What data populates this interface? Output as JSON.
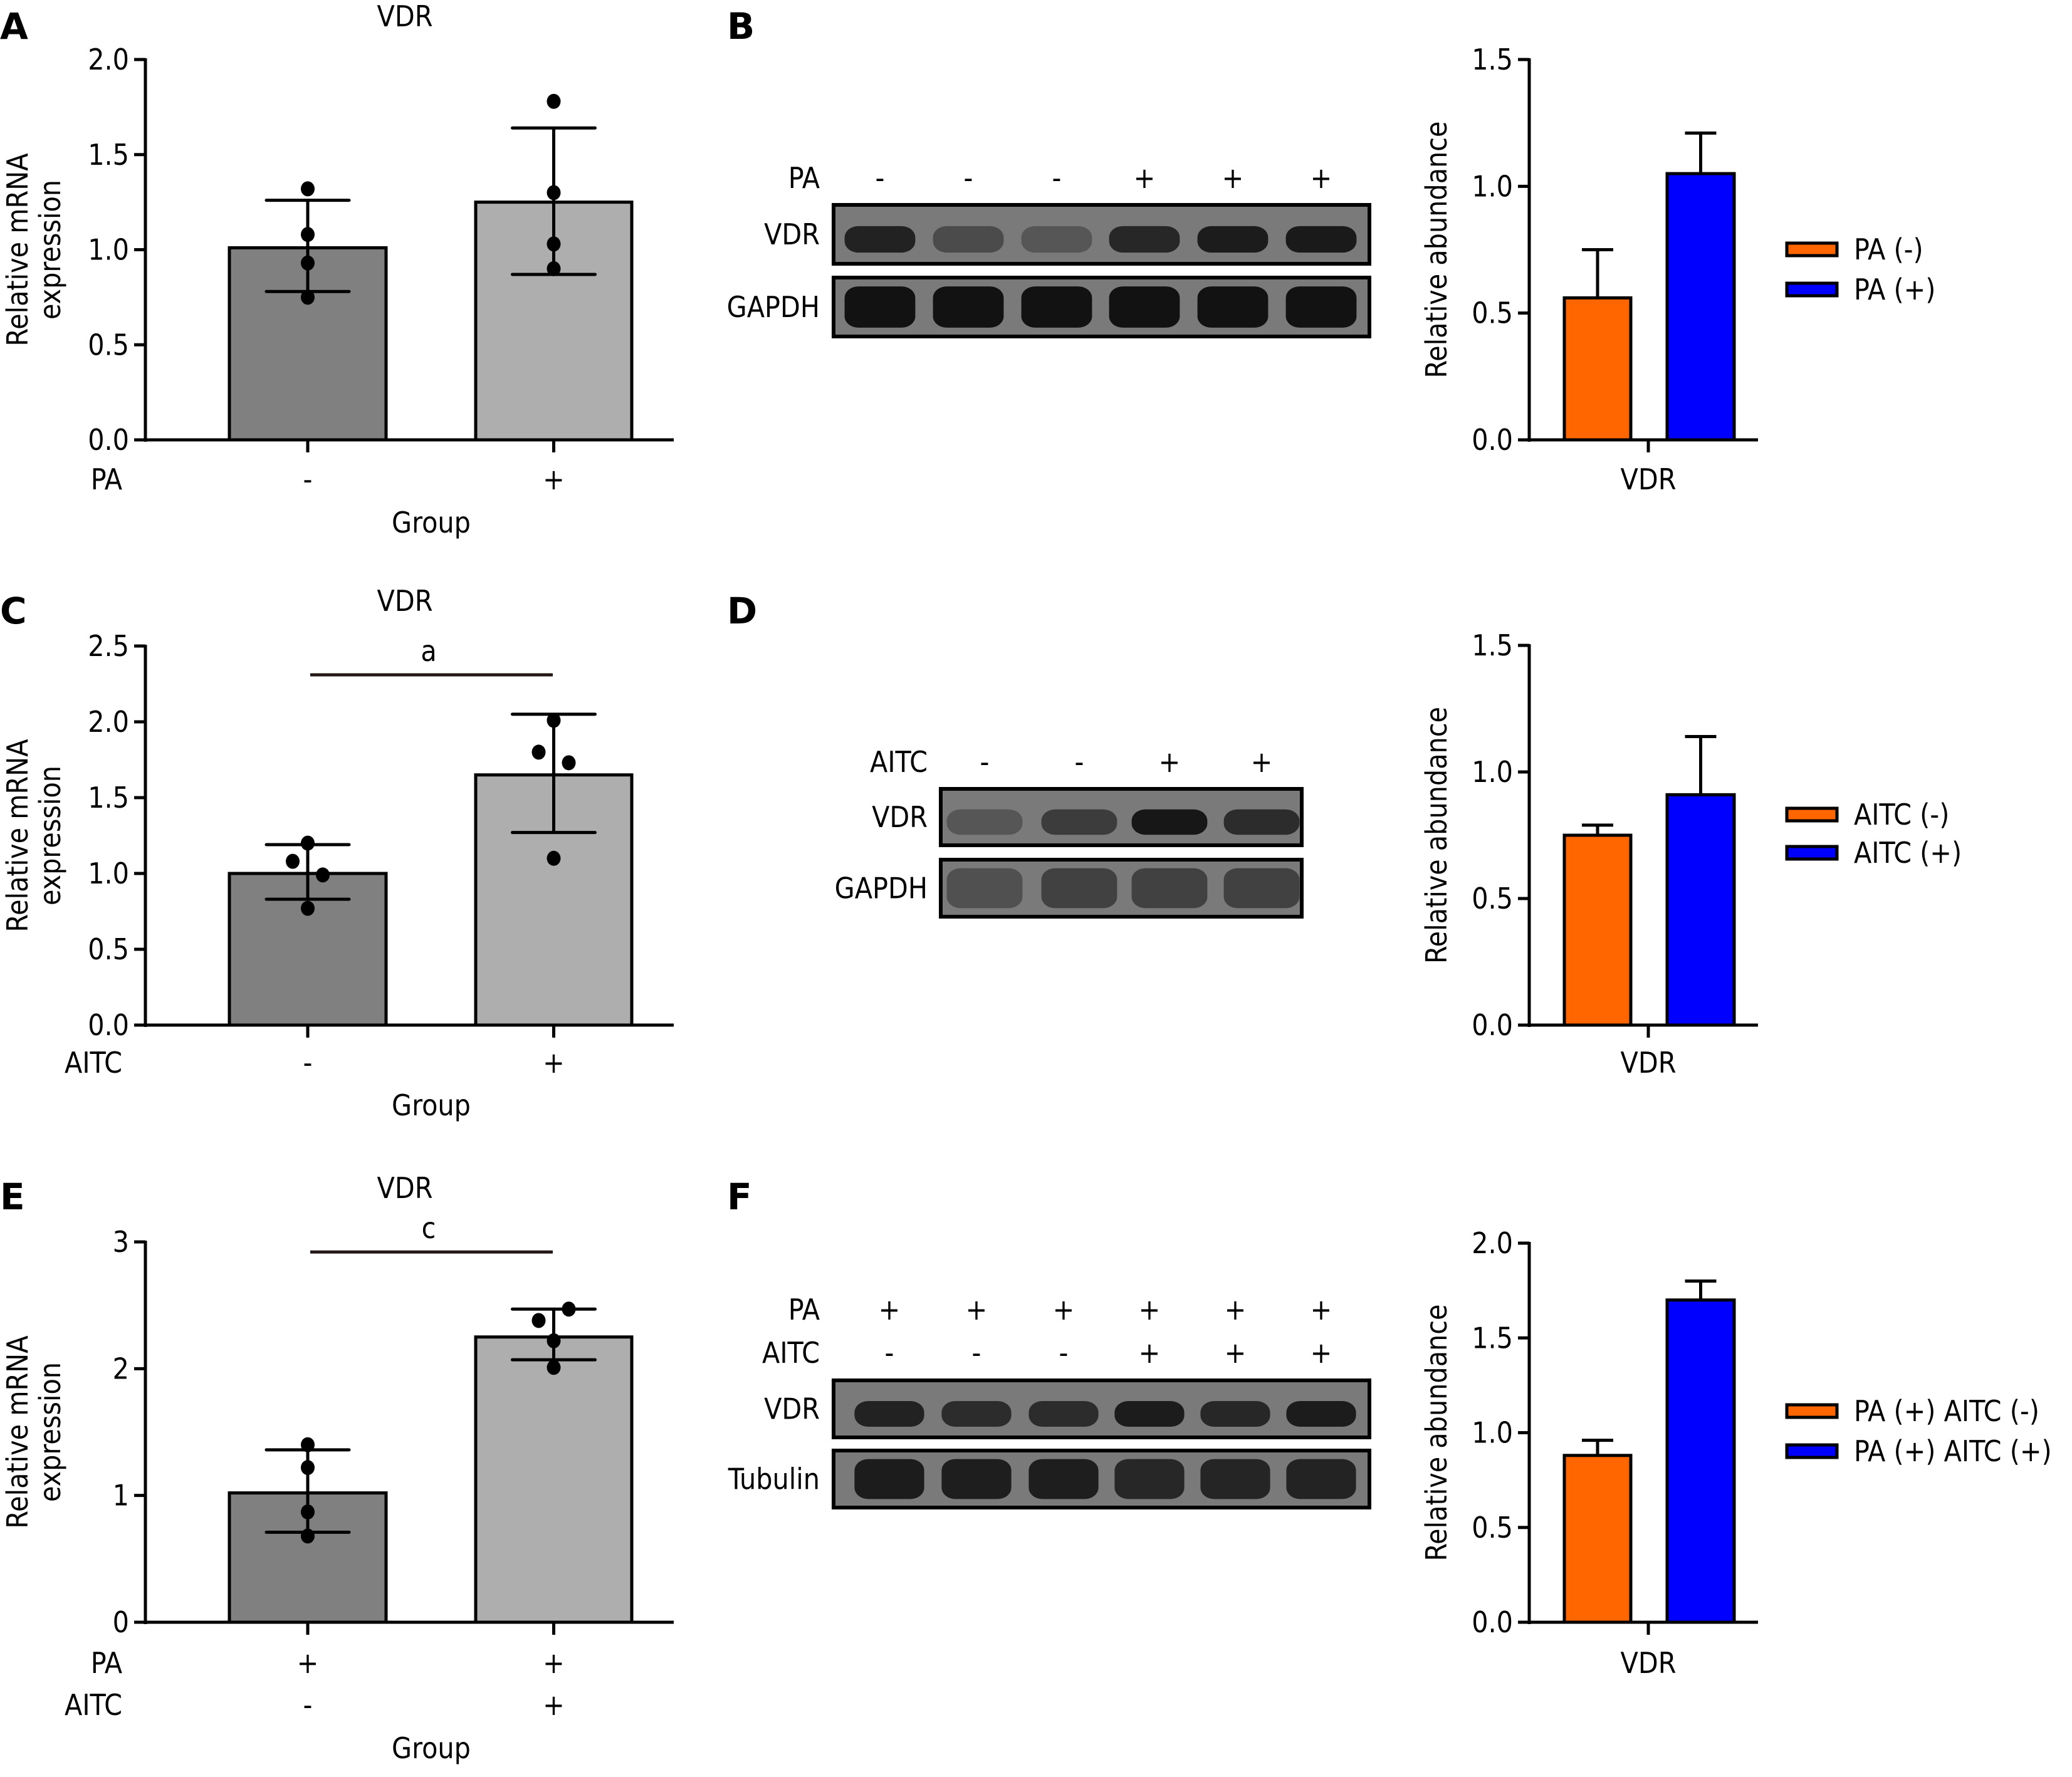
{
  "colors": {
    "bar_dark": "#808080",
    "bar_light": "#AEAEAE",
    "orange": "#FF6600",
    "blue": "#0000FF",
    "sig_line": "#231815",
    "axis": "#000000"
  },
  "panels": {
    "A": {
      "label": "A"
    },
    "B": {
      "label": "B"
    },
    "C": {
      "label": "C"
    },
    "D": {
      "label": "D"
    },
    "E": {
      "label": "E"
    },
    "F": {
      "label": "F"
    }
  },
  "blots": {
    "B": {
      "conditions": [
        {
          "name": "PA",
          "lanes": [
            "-",
            "-",
            "-",
            "+",
            "+",
            "+"
          ]
        }
      ],
      "rows": [
        {
          "name": "VDR",
          "intensity": [
            0.85,
            0.45,
            0.35,
            0.8,
            0.9,
            0.92
          ]
        },
        {
          "name": "GAPDH",
          "intensity": [
            1,
            1,
            1,
            1,
            1,
            1
          ]
        }
      ]
    },
    "D": {
      "conditions": [
        {
          "name": "AITC",
          "lanes": [
            "-",
            "-",
            "+",
            "+"
          ]
        }
      ],
      "rows": [
        {
          "name": "VDR",
          "intensity": [
            0.35,
            0.6,
            0.95,
            0.75
          ]
        },
        {
          "name": "GAPDH",
          "intensity": [
            0.4,
            0.55,
            0.55,
            0.55
          ]
        }
      ]
    },
    "F": {
      "conditions": [
        {
          "name": "PA",
          "lanes": [
            "+",
            "+",
            "+",
            "+",
            "+",
            "+"
          ]
        },
        {
          "name": "AITC",
          "lanes": [
            "-",
            "-",
            "-",
            "+",
            "+",
            "+"
          ]
        }
      ],
      "rows": [
        {
          "name": "VDR",
          "intensity": [
            0.85,
            0.75,
            0.75,
            0.9,
            0.8,
            0.9
          ]
        },
        {
          "name": "Tubulin",
          "intensity": [
            0.9,
            0.88,
            0.88,
            0.8,
            0.82,
            0.84
          ]
        }
      ]
    }
  },
  "chart_data": [
    {
      "id": "A",
      "type": "bar",
      "title": "VDR",
      "ylabel": "Relative mRNA expression",
      "ylabel_lines": [
        "Relative mRNA",
        "expression"
      ],
      "xlabel": "Group",
      "ylim": [
        0,
        2.0
      ],
      "yticks": [
        "0.0",
        "0.5",
        "1.0",
        "1.5",
        "2.0"
      ],
      "ytick_values": [
        0,
        0.5,
        1.0,
        1.5,
        2.0
      ],
      "condition_rows": [
        {
          "name": "PA",
          "values": [
            "-",
            "+"
          ]
        }
      ],
      "bars": [
        {
          "mean": 1.01,
          "sd_upper": 1.26,
          "sd_lower": 0.78,
          "points": [
            1.32,
            1.08,
            0.93,
            0.75
          ],
          "color_key": "bar_dark"
        },
        {
          "mean": 1.25,
          "sd_upper": 1.64,
          "sd_lower": 0.87,
          "points": [
            1.78,
            1.3,
            1.03,
            0.9
          ],
          "color_key": "bar_light"
        }
      ],
      "significance": null
    },
    {
      "id": "B",
      "type": "bar",
      "ylabel": "Relative abundance",
      "xlabel": "",
      "categories": [
        "VDR"
      ],
      "ylim": [
        0,
        1.5
      ],
      "yticks": [
        "0.0",
        "0.5",
        "1.0",
        "1.5"
      ],
      "ytick_values": [
        0,
        0.5,
        1.0,
        1.5
      ],
      "series": [
        {
          "name": "PA (-)",
          "values": [
            0.56
          ],
          "error_upper": [
            0.75
          ],
          "color_key": "orange"
        },
        {
          "name": "PA (+)",
          "values": [
            1.05
          ],
          "error_upper": [
            1.21
          ],
          "color_key": "blue"
        }
      ],
      "legend": "right"
    },
    {
      "id": "C",
      "type": "bar",
      "title": "VDR",
      "ylabel": "Relative mRNA expression",
      "ylabel_lines": [
        "Relative mRNA",
        "expression"
      ],
      "xlabel": "Group",
      "ylim": [
        0,
        2.5
      ],
      "yticks": [
        "0.0",
        "0.5",
        "1.0",
        "1.5",
        "2.0",
        "2.5"
      ],
      "ytick_values": [
        0,
        0.5,
        1.0,
        1.5,
        2.0,
        2.5
      ],
      "condition_rows": [
        {
          "name": "AITC",
          "values": [
            "-",
            "+"
          ]
        }
      ],
      "bars": [
        {
          "mean": 1.0,
          "sd_upper": 1.19,
          "sd_lower": 0.83,
          "points": [
            1.2,
            1.08,
            0.99,
            0.77
          ],
          "point_offsets": [
            0,
            -1,
            1,
            0
          ],
          "color_key": "bar_dark"
        },
        {
          "mean": 1.65,
          "sd_upper": 2.05,
          "sd_lower": 1.27,
          "points": [
            2.01,
            1.8,
            1.73,
            1.1
          ],
          "point_offsets": [
            0,
            -1,
            1,
            0
          ],
          "color_key": "bar_light"
        }
      ],
      "significance": {
        "label": "a",
        "y": 2.31
      }
    },
    {
      "id": "D",
      "type": "bar",
      "ylabel": "Relative abundance",
      "xlabel": "",
      "categories": [
        "VDR"
      ],
      "ylim": [
        0,
        1.5
      ],
      "yticks": [
        "0.0",
        "0.5",
        "1.0",
        "1.5"
      ],
      "ytick_values": [
        0,
        0.5,
        1.0,
        1.5
      ],
      "series": [
        {
          "name": "AITC (-)",
          "values": [
            0.75
          ],
          "error_upper": [
            0.79
          ],
          "color_key": "orange"
        },
        {
          "name": "AITC (+)",
          "values": [
            0.91
          ],
          "error_upper": [
            1.14
          ],
          "color_key": "blue"
        }
      ],
      "legend": "right"
    },
    {
      "id": "E",
      "type": "bar",
      "title": "VDR",
      "ylabel": "Relative mRNA expression",
      "ylabel_lines": [
        "Relative mRNA",
        "expression"
      ],
      "xlabel": "Group",
      "ylim": [
        0,
        3
      ],
      "yticks": [
        "0",
        "1",
        "2",
        "3"
      ],
      "ytick_values": [
        0,
        1,
        2,
        3
      ],
      "condition_rows": [
        {
          "name": "PA",
          "values": [
            "+",
            "+"
          ]
        },
        {
          "name": "AITC",
          "values": [
            "-",
            "+"
          ]
        }
      ],
      "bars": [
        {
          "mean": 1.02,
          "sd_upper": 1.36,
          "sd_lower": 0.71,
          "points": [
            1.4,
            1.22,
            0.87,
            0.68
          ],
          "point_offsets": [
            0,
            0,
            0,
            0
          ],
          "color_key": "bar_dark"
        },
        {
          "mean": 2.25,
          "sd_upper": 2.47,
          "sd_lower": 2.07,
          "points": [
            2.47,
            2.38,
            2.22,
            2.01
          ],
          "point_offsets": [
            1,
            -1,
            0,
            0
          ],
          "color_key": "bar_light"
        }
      ],
      "significance": {
        "label": "c",
        "y": 2.92
      }
    },
    {
      "id": "F",
      "type": "bar",
      "ylabel": "Relative abundance",
      "xlabel": "",
      "categories": [
        "VDR"
      ],
      "ylim": [
        0,
        2.0
      ],
      "yticks": [
        "0.0",
        "0.5",
        "1.0",
        "1.5",
        "2.0"
      ],
      "ytick_values": [
        0,
        0.5,
        1.0,
        1.5,
        2.0
      ],
      "series": [
        {
          "name": "PA (+) AITC (-)",
          "values": [
            0.88
          ],
          "error_upper": [
            0.96
          ],
          "color_key": "orange"
        },
        {
          "name": "PA (+) AITC (+)",
          "values": [
            1.7
          ],
          "error_upper": [
            1.8
          ],
          "color_key": "blue"
        }
      ],
      "legend": "right"
    }
  ]
}
